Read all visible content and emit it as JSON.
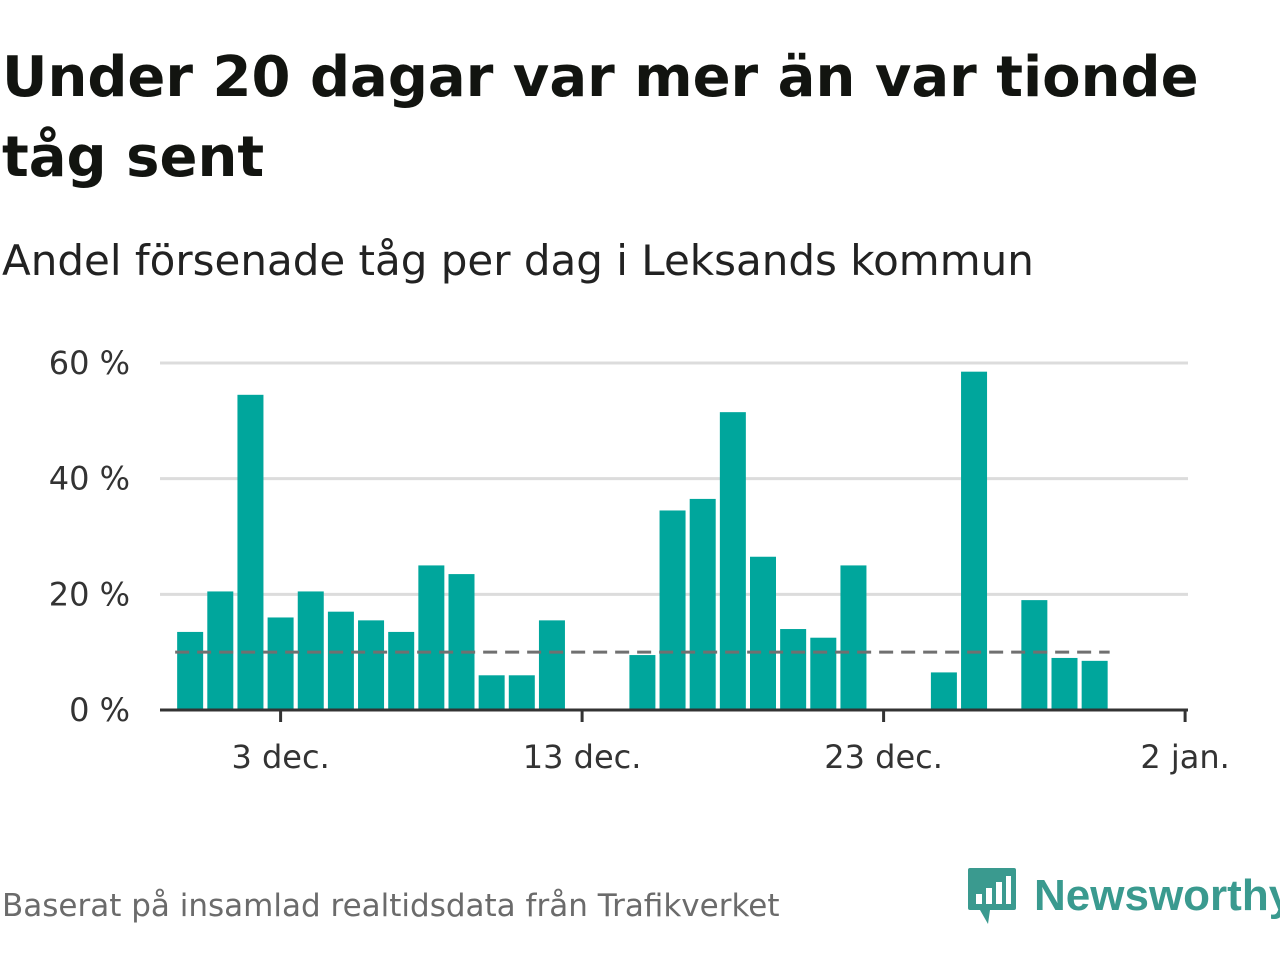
{
  "title": "Under 20 dagar var mer än var tionde tåg sent",
  "subtitle": "Andel försenade tåg per dag i Leksands kommun",
  "source": "Baserat på insamlad realtidsdata från Trafikverket",
  "brand": {
    "name": "Newsworthy",
    "logo_icon": "newsworthy-chart-bubble-icon",
    "color": "#3a9a8f"
  },
  "chart_data": {
    "type": "bar",
    "x": [
      "29 nov.",
      "30 nov.",
      "1 dec.",
      "2 dec.",
      "3 dec.",
      "4 dec.",
      "5 dec.",
      "6 dec.",
      "7 dec.",
      "8 dec.",
      "9 dec.",
      "10 dec.",
      "11 dec.",
      "12 dec.",
      "13 dec.",
      "14 dec.",
      "15 dec.",
      "16 dec.",
      "17 dec.",
      "18 dec.",
      "19 dec.",
      "20 dec.",
      "21 dec.",
      "22 dec.",
      "23 dec.",
      "24 dec.",
      "25 dec.",
      "26 dec.",
      "27 dec.",
      "28 dec.",
      "29 dec.",
      "30 dec.",
      "31 dec.",
      "1 jan.",
      "2 jan."
    ],
    "values": [
      null,
      13.5,
      20.5,
      54.5,
      16.0,
      20.5,
      17.0,
      15.5,
      13.5,
      25.0,
      23.5,
      6.0,
      6.0,
      15.5,
      null,
      null,
      9.5,
      34.5,
      36.5,
      51.5,
      26.5,
      14.0,
      12.5,
      25.0,
      null,
      null,
      6.5,
      58.5,
      null,
      19.0,
      9.0,
      8.5,
      null,
      null,
      null
    ],
    "threshold": 10,
    "ylim": [
      0,
      60
    ],
    "yticks": [
      0,
      20,
      40,
      60
    ],
    "ytick_labels": [
      "0 %",
      "20 %",
      "40 %",
      "60 %"
    ],
    "xticks": [
      "3 dec.",
      "13 dec.",
      "23 dec.",
      "2 jan."
    ],
    "xlabel": "",
    "ylabel": "",
    "grid": true,
    "colors": {
      "bar": "#00a69c",
      "threshold": "#707070",
      "grid": "#dcdcdc",
      "axis": "#333333"
    }
  }
}
